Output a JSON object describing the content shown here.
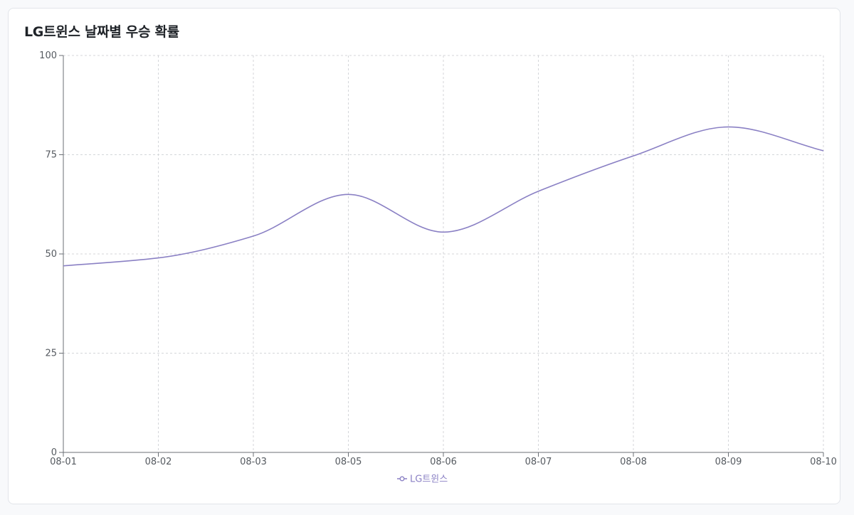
{
  "card": {
    "title": "LG트윈스 날짜별 우승 확률"
  },
  "chart_data": {
    "type": "line",
    "title": "LG트윈스 날짜별 우승 확률",
    "xlabel": "",
    "ylabel": "",
    "categories": [
      "08-01",
      "08-02",
      "08-03",
      "08-05",
      "08-06",
      "08-07",
      "08-08",
      "08-09",
      "08-10"
    ],
    "series": [
      {
        "name": "LG트윈스",
        "values": [
          47,
          49,
          54.5,
          65,
          55.5,
          65.8,
          74.7,
          82,
          76
        ]
      }
    ],
    "ylim": [
      0,
      100
    ],
    "yticks": [
      0,
      25,
      50,
      75,
      100
    ],
    "grid": true,
    "legend": "bottom-center",
    "colors": {
      "line": "#8a80c4",
      "grid": "#d4d6da",
      "axis": "#6b6f75"
    }
  }
}
